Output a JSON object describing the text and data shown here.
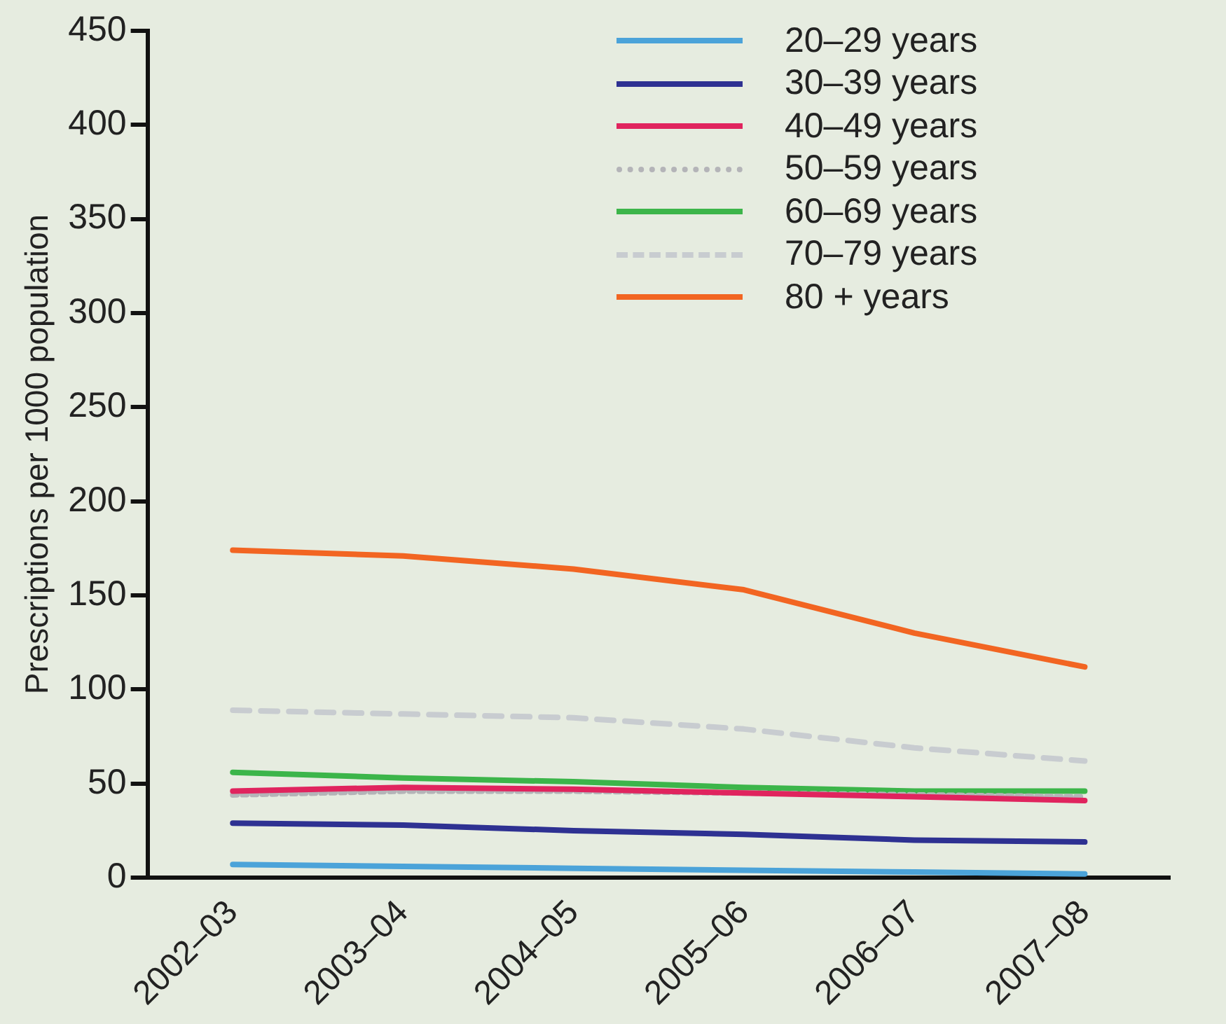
{
  "chart_data": {
    "type": "line",
    "ylabel": "Prescriptions per 1000 population",
    "categories": [
      "2002–03",
      "2003–04",
      "2004–05",
      "2005–06",
      "2006–07",
      "2007–08"
    ],
    "ylim": [
      0,
      450
    ],
    "yticks": [
      0,
      50,
      100,
      150,
      200,
      250,
      300,
      350,
      400,
      450
    ],
    "grid": false,
    "legend": "top right",
    "marker": "none",
    "series": [
      {
        "name": "20–29 years",
        "color": "#4ba3d9",
        "line_style": "solid",
        "values": [
          7,
          6,
          5,
          4,
          3,
          2
        ]
      },
      {
        "name": "30–39 years",
        "color": "#2e3192",
        "line_style": "solid",
        "values": [
          29,
          28,
          25,
          23,
          20,
          19
        ]
      },
      {
        "name": "40–49 years",
        "color": "#e0245e",
        "line_style": "solid",
        "values": [
          46,
          48,
          47,
          45,
          43,
          41
        ]
      },
      {
        "name": "50–59 years",
        "color": "#b4b4b8",
        "line_style": "dotted",
        "values": [
          44,
          46,
          46,
          45,
          44,
          43
        ]
      },
      {
        "name": "60–69 years",
        "color": "#3cb54a",
        "line_style": "solid",
        "values": [
          56,
          53,
          51,
          48,
          46,
          46
        ]
      },
      {
        "name": "70–79 years",
        "color": "#c8ccd0",
        "line_style": "dashed",
        "values": [
          89,
          87,
          85,
          79,
          69,
          62
        ]
      },
      {
        "name": "80 + years",
        "color": "#f26522",
        "line_style": "solid",
        "values": [
          174,
          171,
          164,
          153,
          130,
          112
        ]
      }
    ]
  }
}
